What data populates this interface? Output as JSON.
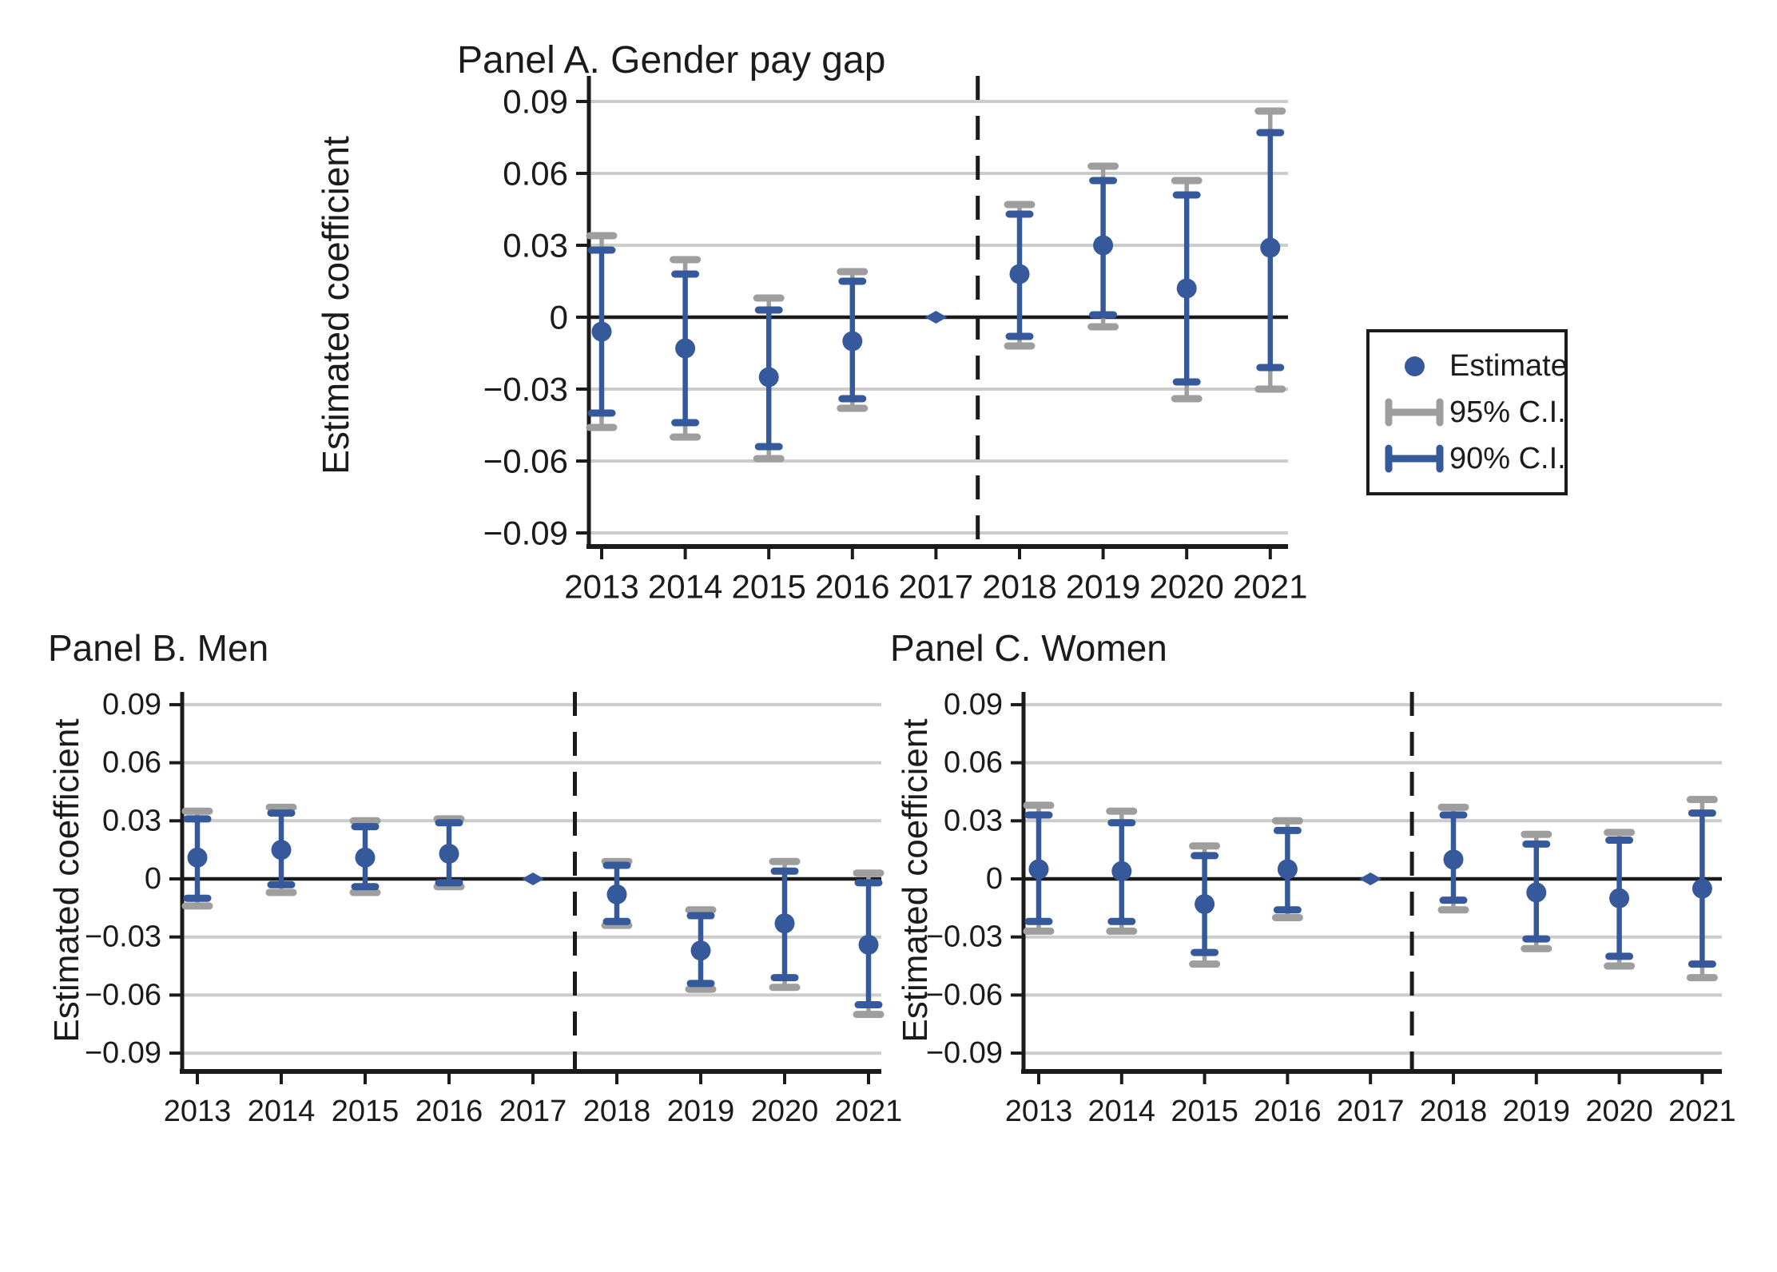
{
  "colors": {
    "estimate_blue": "#35599B",
    "ci95_gray": "#9E9E9E",
    "gridline": "#CCCCCC",
    "ink": "#1B1B1B",
    "background": "#FFFFFF"
  },
  "legend": {
    "items": [
      {
        "label": "Estimate",
        "marker": "dot",
        "color": "blue"
      },
      {
        "label": "95% C.I.",
        "marker": "ibeam",
        "color": "gray"
      },
      {
        "label": "90% C.I.",
        "marker": "ibeam",
        "color": "blue"
      }
    ]
  },
  "chart_data": [
    {
      "id": "panel-a",
      "type": "scatter",
      "title": "Panel A. Gender pay gap",
      "ylabel": "Estimated coefficient",
      "xlabel": "",
      "years": [
        2013,
        2014,
        2015,
        2016,
        2017,
        2018,
        2019,
        2020,
        2021
      ],
      "reference_year": 2017,
      "dashed_vline_between": [
        2017,
        2018
      ],
      "ylim": [
        -0.09,
        0.09
      ],
      "grid": true,
      "yticks": [
        0.09,
        0.06,
        0.03,
        0,
        -0.03,
        -0.06,
        -0.09
      ],
      "ytick_labels": [
        "0.09",
        "0.06",
        "0.03",
        "0",
        "−0.03",
        "−0.06",
        "−0.09"
      ],
      "estimate": [
        -0.006,
        -0.013,
        -0.025,
        -0.01,
        0,
        0.018,
        0.03,
        0.012,
        0.029
      ],
      "ci90_low": [
        -0.04,
        -0.044,
        -0.054,
        -0.034,
        null,
        -0.008,
        0.001,
        -0.027,
        -0.021
      ],
      "ci90_high": [
        0.028,
        0.018,
        0.003,
        0.015,
        null,
        0.043,
        0.057,
        0.051,
        0.077
      ],
      "ci95_low": [
        -0.046,
        -0.05,
        -0.059,
        -0.038,
        null,
        -0.012,
        -0.004,
        -0.034,
        -0.03
      ],
      "ci95_high": [
        0.034,
        0.024,
        0.008,
        0.019,
        null,
        0.047,
        0.063,
        0.057,
        0.086
      ]
    },
    {
      "id": "panel-b",
      "type": "scatter",
      "title": "Panel B. Men",
      "ylabel": "Estimated coefficient",
      "xlabel": "",
      "years": [
        2013,
        2014,
        2015,
        2016,
        2017,
        2018,
        2019,
        2020,
        2021
      ],
      "reference_year": 2017,
      "dashed_vline_between": [
        2017,
        2018
      ],
      "ylim": [
        -0.09,
        0.09
      ],
      "grid": true,
      "yticks": [
        0.09,
        0.06,
        0.03,
        0,
        -0.03,
        -0.06,
        -0.09
      ],
      "ytick_labels": [
        "0.09",
        "0.06",
        "0.03",
        "0",
        "−0.03",
        "−0.06",
        "−0.09"
      ],
      "estimate": [
        0.011,
        0.015,
        0.011,
        0.013,
        0,
        -0.008,
        -0.037,
        -0.023,
        -0.034
      ],
      "ci90_low": [
        -0.01,
        -0.003,
        -0.004,
        -0.002,
        null,
        -0.022,
        -0.054,
        -0.051,
        -0.065
      ],
      "ci90_high": [
        0.031,
        0.034,
        0.027,
        0.029,
        null,
        0.007,
        -0.019,
        0.004,
        -0.002
      ],
      "ci95_low": [
        -0.014,
        -0.007,
        -0.007,
        -0.004,
        null,
        -0.024,
        -0.057,
        -0.056,
        -0.07
      ],
      "ci95_high": [
        0.035,
        0.037,
        0.03,
        0.031,
        null,
        0.009,
        -0.016,
        0.009,
        0.003
      ]
    },
    {
      "id": "panel-c",
      "type": "scatter",
      "title": "Panel C. Women",
      "ylabel": "Estimated coefficient",
      "xlabel": "",
      "years": [
        2013,
        2014,
        2015,
        2016,
        2017,
        2018,
        2019,
        2020,
        2021
      ],
      "reference_year": 2017,
      "dashed_vline_between": [
        2017,
        2018
      ],
      "ylim": [
        -0.09,
        0.09
      ],
      "grid": true,
      "yticks": [
        0.09,
        0.06,
        0.03,
        0,
        -0.03,
        -0.06,
        -0.09
      ],
      "ytick_labels": [
        "0.09",
        "0.06",
        "0.03",
        "0",
        "−0.03",
        "−0.06",
        "−0.09"
      ],
      "estimate": [
        0.005,
        0.004,
        -0.013,
        0.005,
        0,
        0.01,
        -0.007,
        -0.01,
        -0.005
      ],
      "ci90_low": [
        -0.022,
        -0.022,
        -0.038,
        -0.016,
        null,
        -0.011,
        -0.031,
        -0.04,
        -0.044
      ],
      "ci90_high": [
        0.033,
        0.029,
        0.012,
        0.025,
        null,
        0.033,
        0.018,
        0.02,
        0.034
      ],
      "ci95_low": [
        -0.027,
        -0.027,
        -0.044,
        -0.02,
        null,
        -0.016,
        -0.036,
        -0.045,
        -0.051
      ],
      "ci95_high": [
        0.038,
        0.035,
        0.017,
        0.03,
        null,
        0.037,
        0.023,
        0.024,
        0.041
      ]
    }
  ]
}
